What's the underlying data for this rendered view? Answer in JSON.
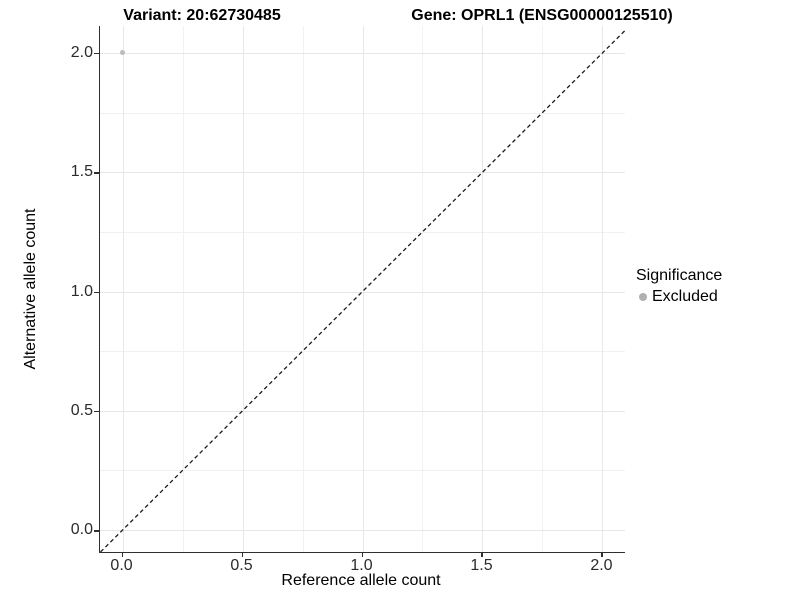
{
  "titles": {
    "variant": "Variant: 20:62730485",
    "gene": "Gene: OPRL1 (ENSG00000125510)"
  },
  "chart_data": {
    "type": "scatter",
    "title": "Variant: 20:62730485   Gene: OPRL1 (ENSG00000125510)",
    "xlabel": "Reference allele count",
    "ylabel": "Alternative allele count",
    "xlim": [
      -0.094,
      2.094
    ],
    "ylim": [
      -0.092,
      2.113
    ],
    "x_major_ticks": [
      0,
      0.5,
      1,
      1.5,
      2
    ],
    "x_tick_labels": [
      "0.0",
      "0.5",
      "1.0",
      "1.5",
      "2.0"
    ],
    "y_major_ticks": [
      0,
      0.5,
      1,
      1.5,
      2
    ],
    "y_tick_labels": [
      "0.0",
      "0.5",
      "1.0",
      "1.5",
      "2.0"
    ],
    "x_minor_ticks": [
      0.25,
      0.75,
      1.25,
      1.75
    ],
    "y_minor_ticks": [
      0.25,
      0.75,
      1.25,
      1.75
    ],
    "grid": true,
    "series": [
      {
        "name": "Excluded",
        "color": "#bdbdbd",
        "points": [
          {
            "x": 0.0,
            "y": 2.0
          }
        ]
      }
    ],
    "reference_line": {
      "type": "identity",
      "slope": 1,
      "intercept": 0,
      "style": "dashed",
      "color": "#1a1a1a"
    },
    "legend": {
      "title": "Significance",
      "position": "right",
      "entries": [
        {
          "label": "Excluded",
          "color": "#b0b0b0"
        }
      ]
    }
  },
  "colors": {
    "grid_major": "#e7e7e7",
    "grid_minor": "#f1f1f1",
    "axis_line": "#2f2f2f",
    "background": "#ffffff"
  }
}
